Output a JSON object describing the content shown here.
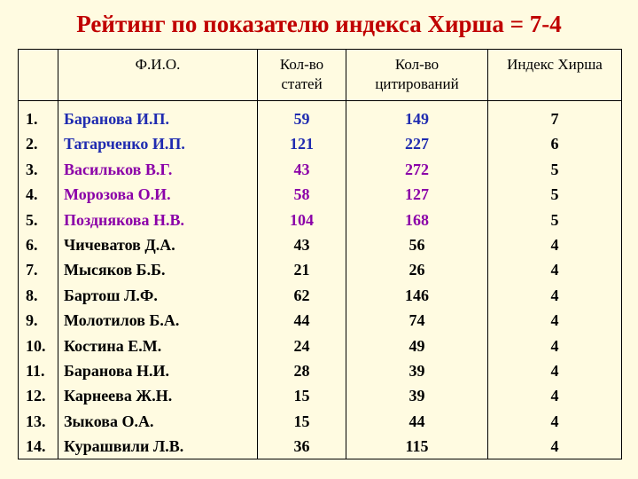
{
  "title": "Рейтинг по показателю индекса Хирша = 7-4",
  "headers": {
    "num": "",
    "name": "Ф.И.О.",
    "articles_1": "Кол-во",
    "articles_2": "статей",
    "citations_1": "Кол-во",
    "citations_2": "цитирований",
    "hirsch": "Индекс Хирша"
  },
  "colors": {
    "title": "#c00000",
    "blue": "#1f2bb0",
    "purple": "#8b00a8",
    "background": "#fffbe1"
  },
  "rows": [
    {
      "n": "1.",
      "name": "Баранова И.П.",
      "articles": "59",
      "citations": "149",
      "h": "7",
      "color": "blue"
    },
    {
      "n": "2.",
      "name": "Татарченко И.П.",
      "articles": "121",
      "citations": "227",
      "h": "6",
      "color": "blue"
    },
    {
      "n": "3.",
      "name": "Васильков В.Г.",
      "articles": "43",
      "citations": "272",
      "h": "5",
      "color": "purple"
    },
    {
      "n": "4.",
      "name": "Морозова О.И.",
      "articles": "58",
      "citations": "127",
      "h": "5",
      "color": "purple"
    },
    {
      "n": "5.",
      "name": "Позднякова Н.В.",
      "articles": "104",
      "citations": "168",
      "h": "5",
      "color": "purple"
    },
    {
      "n": "6.",
      "name": "Чичеватов Д.А.",
      "articles": "43",
      "citations": "56",
      "h": "4",
      "color": "black"
    },
    {
      "n": "7.",
      "name": "Мысяков Б.Б.",
      "articles": "21",
      "citations": "26",
      "h": "4",
      "color": "black"
    },
    {
      "n": "8.",
      "name": "Бартош Л.Ф.",
      "articles": "62",
      "citations": "146",
      "h": "4",
      "color": "black"
    },
    {
      "n": "9.",
      "name": "Молотилов Б.А.",
      "articles": "44",
      "citations": "74",
      "h": "4",
      "color": "black"
    },
    {
      "n": "10.",
      "name": "Костина Е.М.",
      "articles": "24",
      "citations": "49",
      "h": "4",
      "color": "black"
    },
    {
      "n": "11.",
      "name": "Баранова Н.И.",
      "articles": "28",
      "citations": "39",
      "h": "4",
      "color": "black"
    },
    {
      "n": "12.",
      "name": "Карнеева Ж.Н.",
      "articles": "15",
      "citations": "39",
      "h": "4",
      "color": "black"
    },
    {
      "n": "13.",
      "name": "Зыкова О.А.",
      "articles": "15",
      "citations": "44",
      "h": "4",
      "color": "black"
    },
    {
      "n": "14.",
      "name": "Курашвили Л.В.",
      "articles": "36",
      "citations": "115",
      "h": "4",
      "color": "black"
    }
  ]
}
